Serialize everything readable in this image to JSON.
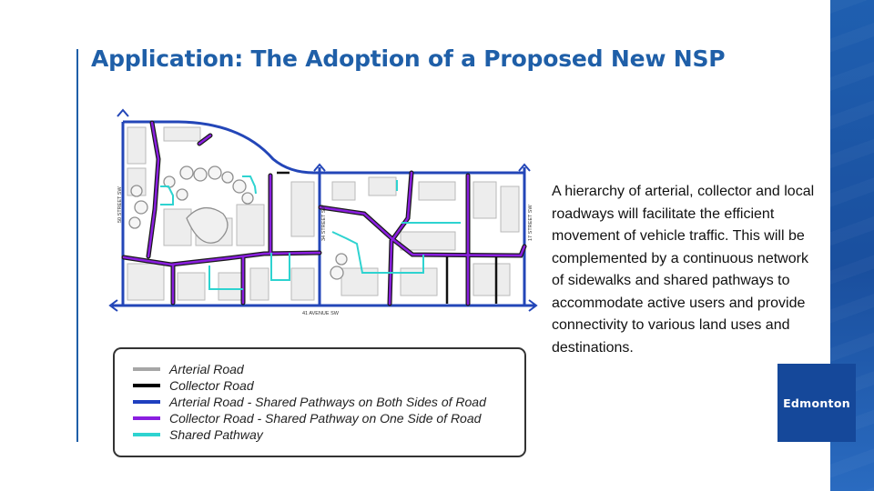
{
  "slide": {
    "title": "Application: The Adoption of a Proposed New NSP",
    "description": "A hierarchy of arterial, collector and local roadways will facilitate the efficient movement of vehicle traffic. This will be complemented by a continuous network of sidewalks and shared pathways to accommodate active users and provide connectivity to various land uses and destinations.",
    "logo_text": "Edmonton"
  },
  "map": {
    "street_labels": {
      "fifty_street": "50 STREET SW",
      "thirtyfour_street": "34 STREET SW",
      "seventeen_street": "17 STREET SW",
      "fortyone_avenue": "41 AVENUE SW"
    }
  },
  "legend": {
    "items": [
      {
        "label": "Arterial Road",
        "color": "#a6a6a6"
      },
      {
        "label": "Collector Road",
        "color": "#000000"
      },
      {
        "label": "Arterial Road - Shared Pathways on Both Sides of Road",
        "color": "#1f3fbf"
      },
      {
        "label": "Collector Road - Shared Pathway on One Side of Road",
        "color": "#8a1ee0"
      },
      {
        "label": "Shared Pathway",
        "color": "#2ed3d0"
      }
    ]
  },
  "colors": {
    "title_blue": "#1f5fa8",
    "band_blue": "#1f5fb0",
    "logo_blue": "#15489a"
  }
}
